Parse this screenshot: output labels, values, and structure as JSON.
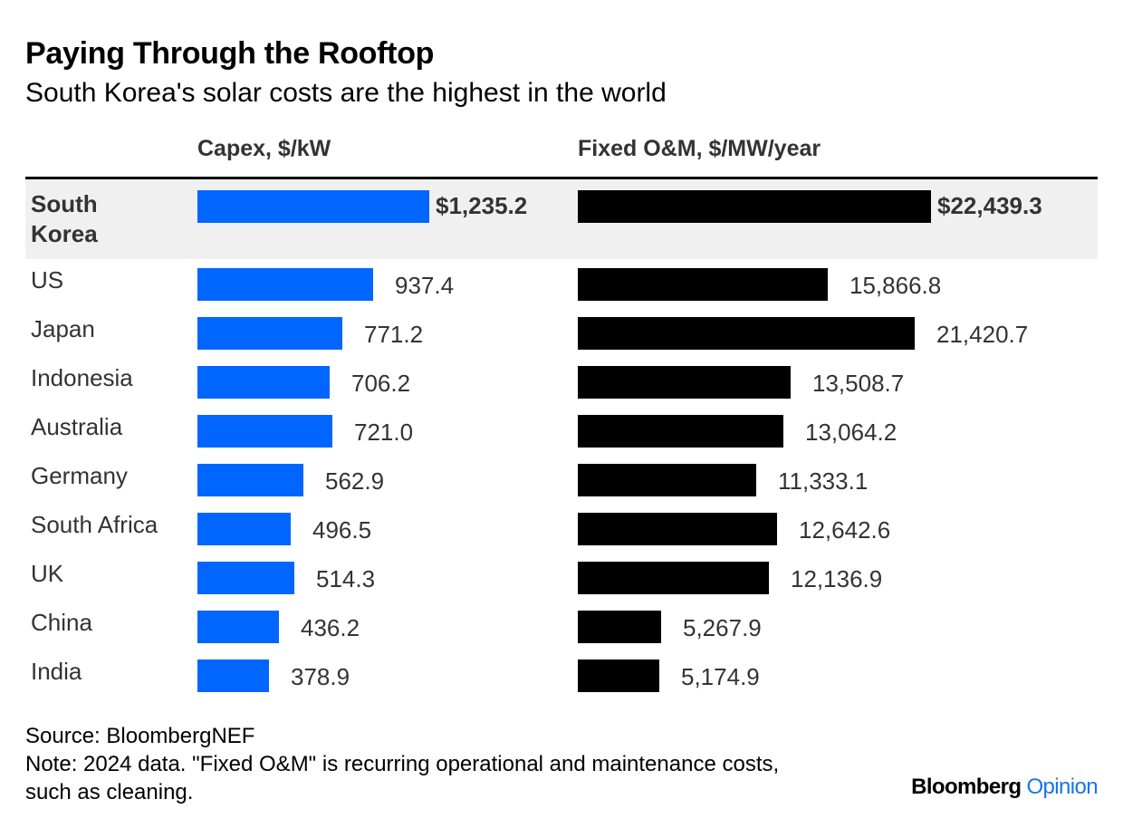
{
  "title": "Paying Through the Rooftop",
  "subtitle": "South Korea's solar costs are the highest in the world",
  "colors": {
    "capex_bar": "#0066ff",
    "om_bar": "#000000",
    "highlight_row_bg": "#f0f0f0"
  },
  "chart_data": {
    "type": "bar",
    "orientation": "horizontal",
    "highlight": "South Korea",
    "categories": [
      "South Korea",
      "US",
      "Japan",
      "Indonesia",
      "Australia",
      "Germany",
      "South Africa",
      "UK",
      "China",
      "India"
    ],
    "series": [
      {
        "name": "Capex, $/kW",
        "values": [
          1235.2,
          937.4,
          771.2,
          706.2,
          721.0,
          562.9,
          496.5,
          514.3,
          436.2,
          378.9
        ],
        "labels": [
          "$1,235.2",
          "937.4",
          "771.2",
          "706.2",
          "721.0",
          "562.9",
          "496.5",
          "514.3",
          "436.2",
          "378.9"
        ],
        "xlim": [
          0,
          1235.2
        ]
      },
      {
        "name": "Fixed O&M, $/MW/year",
        "values": [
          22439.3,
          15866.8,
          21420.7,
          13508.7,
          13064.2,
          11333.1,
          12642.6,
          12136.9,
          5267.9,
          5174.9
        ],
        "labels": [
          "$22,439.3",
          "15,866.8",
          "21,420.7",
          "13,508.7",
          "13,064.2",
          "11,333.1",
          "12,642.6",
          "12,136.9",
          "5,267.9",
          "5,174.9"
        ],
        "xlim": [
          0,
          22439.3
        ]
      }
    ]
  },
  "footer": {
    "source": "Source: BloombergNEF",
    "note_line1": "Note: 2024 data. \"Fixed O&M\" is recurring operational and maintenance costs,",
    "note_line2": "such as cleaning."
  },
  "logo": {
    "brand": "Bloomberg",
    "section": "Opinion"
  }
}
